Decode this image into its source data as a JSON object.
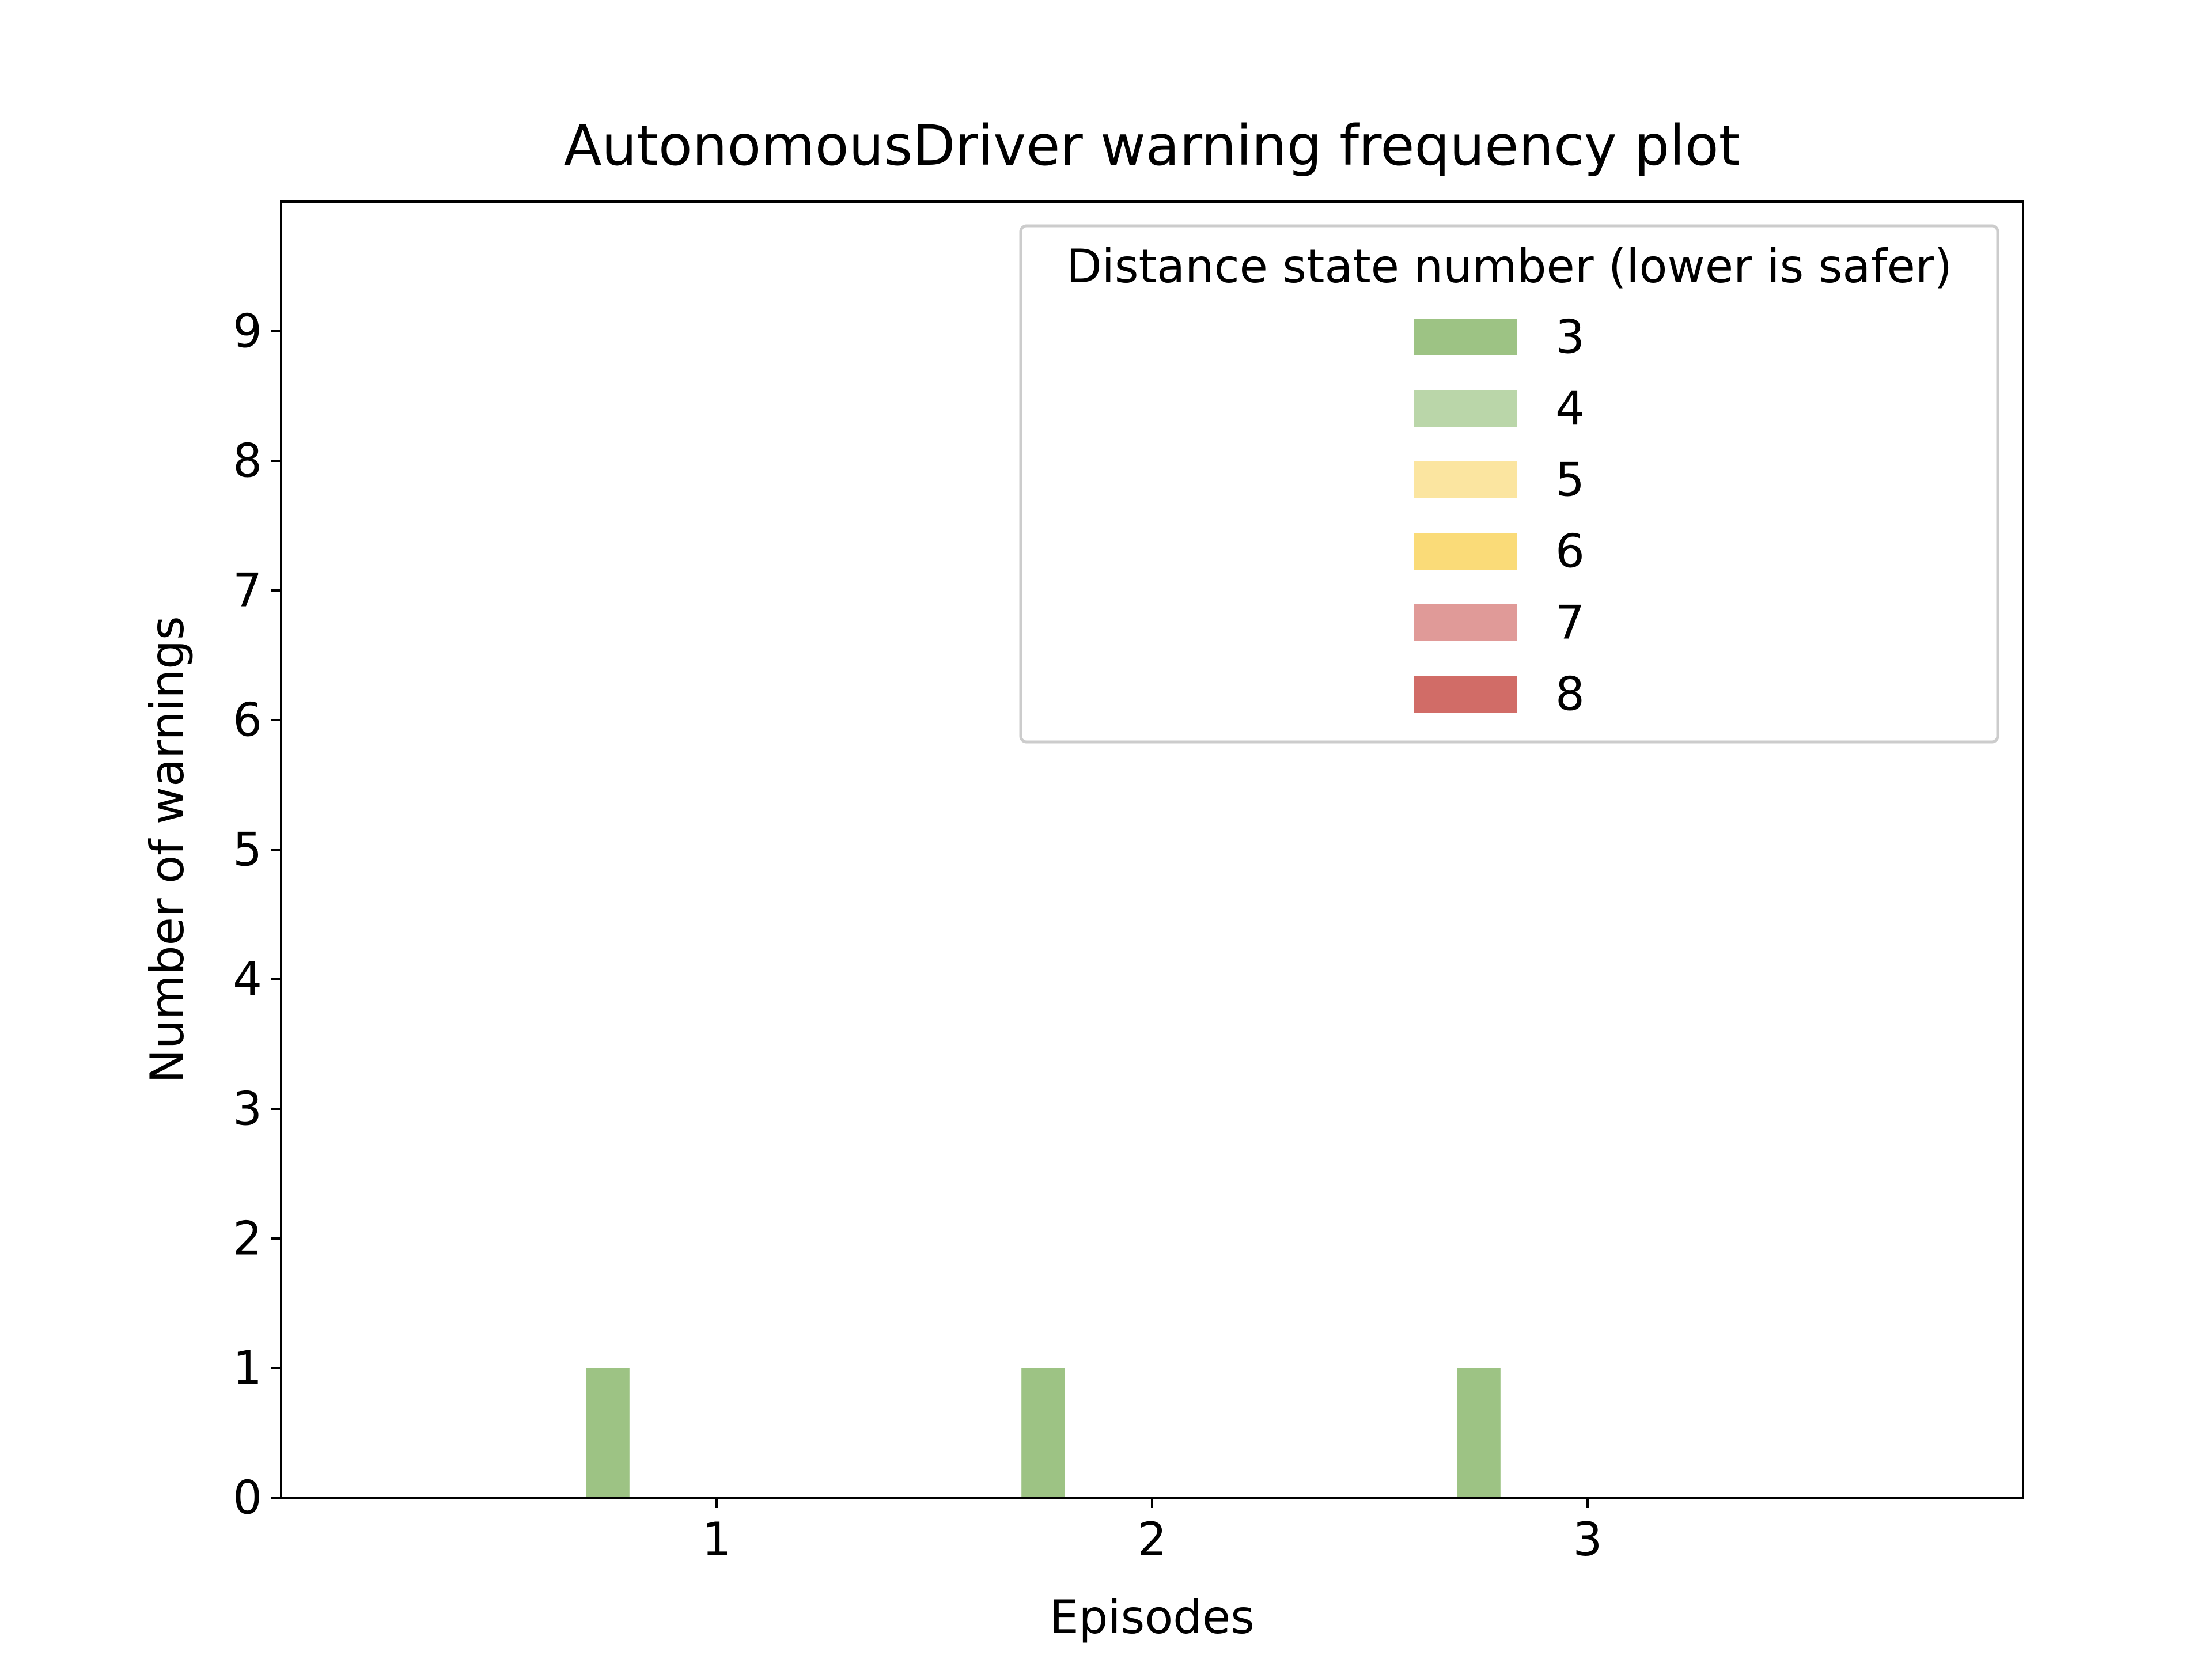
{
  "chart_data": {
    "type": "bar",
    "title": "AutonomousDriver warning frequency plot",
    "xlabel": "Episodes",
    "ylabel": "Number of warnings",
    "categories": [
      "1",
      "2",
      "3"
    ],
    "x_values": [
      1,
      2,
      3
    ],
    "xlim": [
      0,
      4
    ],
    "ylim": [
      0,
      10
    ],
    "yticks": [
      "0",
      "1",
      "2",
      "3",
      "4",
      "5",
      "6",
      "7",
      "8",
      "9"
    ],
    "grid": false,
    "legend": {
      "title": "Distance state number (lower is safer)",
      "placement": "top-right"
    },
    "series": [
      {
        "name": "3",
        "color": "#9dc384",
        "values": [
          1,
          1,
          1
        ]
      },
      {
        "name": "4",
        "color": "#bad6a9",
        "values": [
          0,
          0,
          0
        ]
      },
      {
        "name": "5",
        "color": "#fbe5a0",
        "values": [
          0,
          0,
          0
        ]
      },
      {
        "name": "6",
        "color": "#fadb78",
        "values": [
          0,
          0,
          0
        ]
      },
      {
        "name": "7",
        "color": "#e09a98",
        "values": [
          0,
          0,
          0
        ]
      },
      {
        "name": "8",
        "color": "#d16c67",
        "values": [
          0,
          0,
          0
        ]
      }
    ]
  }
}
